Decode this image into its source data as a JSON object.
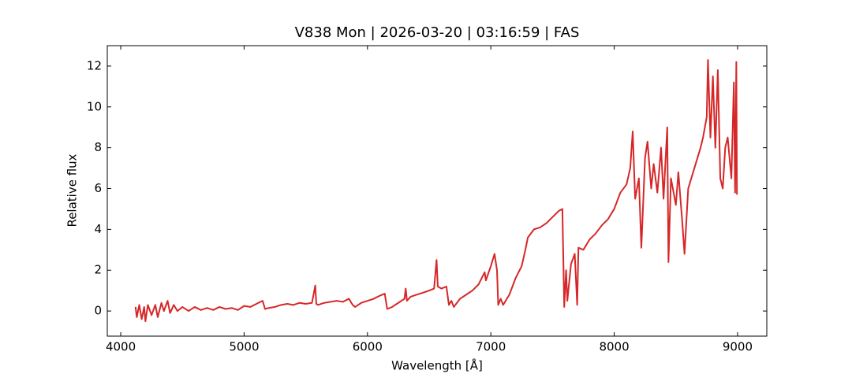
{
  "chart_data": {
    "type": "line",
    "title": "V838 Mon | 2026-03-20 | 03:16:59 | FAS",
    "xlabel": "Wavelength [Å]",
    "ylabel": "Relative flux",
    "xlim": [
      3891,
      9237
    ],
    "ylim": [
      -1.23,
      13.0
    ],
    "xticks": [
      4000,
      5000,
      6000,
      7000,
      8000,
      9000
    ],
    "yticks": [
      0,
      2,
      4,
      6,
      8,
      10,
      12
    ],
    "grid": false,
    "series": [
      {
        "color": "#d62728",
        "x": [
          4120,
          4130,
          4150,
          4170,
          4190,
          4200,
          4220,
          4250,
          4280,
          4300,
          4330,
          4350,
          4380,
          4400,
          4430,
          4460,
          4500,
          4550,
          4600,
          4650,
          4700,
          4750,
          4800,
          4850,
          4900,
          4950,
          5000,
          5050,
          5100,
          5150,
          5170,
          5200,
          5250,
          5300,
          5350,
          5400,
          5450,
          5500,
          5550,
          5577,
          5585,
          5600,
          5650,
          5700,
          5750,
          5800,
          5850,
          5880,
          5900,
          5950,
          6000,
          6050,
          6100,
          6140,
          6160,
          6200,
          6250,
          6300,
          6310,
          6320,
          6350,
          6400,
          6450,
          6500,
          6540,
          6560,
          6570,
          6600,
          6640,
          6660,
          6680,
          6700,
          6750,
          6800,
          6850,
          6900,
          6950,
          6960,
          7000,
          7030,
          7050,
          7060,
          7080,
          7100,
          7150,
          7200,
          7250,
          7280,
          7300,
          7350,
          7400,
          7450,
          7500,
          7550,
          7580,
          7595,
          7610,
          7620,
          7650,
          7680,
          7700,
          7710,
          7750,
          7800,
          7850,
          7900,
          7950,
          8000,
          8050,
          8100,
          8130,
          8150,
          8170,
          8200,
          8220,
          8250,
          8270,
          8300,
          8320,
          8350,
          8380,
          8400,
          8430,
          8440,
          8460,
          8500,
          8520,
          8550,
          8570,
          8600,
          8650,
          8700,
          8720,
          8750,
          8760,
          8780,
          8800,
          8820,
          8840,
          8860,
          8880,
          8900,
          8920,
          8950,
          8970,
          8980,
          8990,
          8995
        ],
        "values": [
          0.2,
          -0.3,
          0.3,
          -0.4,
          0.2,
          -0.5,
          0.3,
          -0.2,
          0.3,
          -0.3,
          0.4,
          0.0,
          0.5,
          -0.1,
          0.3,
          0.0,
          0.2,
          0.0,
          0.2,
          0.05,
          0.15,
          0.05,
          0.2,
          0.1,
          0.15,
          0.05,
          0.25,
          0.2,
          0.35,
          0.5,
          0.1,
          0.15,
          0.2,
          0.3,
          0.35,
          0.3,
          0.4,
          0.35,
          0.4,
          1.25,
          0.35,
          0.3,
          0.4,
          0.45,
          0.5,
          0.45,
          0.6,
          0.3,
          0.2,
          0.4,
          0.5,
          0.6,
          0.75,
          0.85,
          0.1,
          0.2,
          0.4,
          0.6,
          1.1,
          0.5,
          0.7,
          0.8,
          0.9,
          1.0,
          1.1,
          2.5,
          1.2,
          1.1,
          1.2,
          0.3,
          0.5,
          0.2,
          0.6,
          0.8,
          1.0,
          1.3,
          1.9,
          1.5,
          2.2,
          2.8,
          2.0,
          0.3,
          0.6,
          0.3,
          0.8,
          1.6,
          2.2,
          3.0,
          3.6,
          4.0,
          4.1,
          4.3,
          4.6,
          4.9,
          5.0,
          0.2,
          2.0,
          0.5,
          2.3,
          2.8,
          0.3,
          3.1,
          3.0,
          3.5,
          3.8,
          4.2,
          4.5,
          5.0,
          5.8,
          6.2,
          7.0,
          8.8,
          5.5,
          6.5,
          3.1,
          7.5,
          8.3,
          6.0,
          7.2,
          5.8,
          8.0,
          5.5,
          9.0,
          2.4,
          6.5,
          5.2,
          6.8,
          4.5,
          2.8,
          6.0,
          7.0,
          8.0,
          8.5,
          9.5,
          12.3,
          8.5,
          11.5,
          8.0,
          11.8,
          6.5,
          6.0,
          8.0,
          8.5,
          6.5,
          11.2,
          5.8,
          12.2,
          5.7
        ]
      }
    ]
  }
}
